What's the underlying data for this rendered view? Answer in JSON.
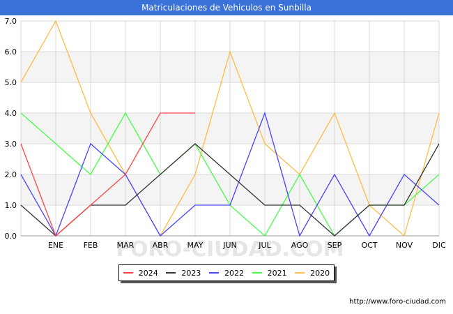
{
  "title": "Matriculaciones de Vehiculos en Sunbilla",
  "footer_url": "http://www.foro-ciudad.com",
  "watermark": "FORO-CIUDAD.COM",
  "chart_data": {
    "type": "line",
    "title": "Matriculaciones de Vehiculos en Sunbilla",
    "xlabel": "",
    "ylabel": "",
    "categories": [
      "",
      "ENE",
      "FEB",
      "MAR",
      "ABR",
      "MAY",
      "JUN",
      "JUL",
      "AGO",
      "SEP",
      "OCT",
      "NOV",
      "DIC"
    ],
    "ylim": [
      0,
      7
    ],
    "yticks": [
      "0.0",
      "1.0",
      "2.0",
      "3.0",
      "4.0",
      "5.0",
      "6.0",
      "7.0"
    ],
    "grid": true,
    "legend_position": "bottom",
    "series": [
      {
        "name": "2024",
        "color": "#ff4444",
        "values": [
          3,
          0,
          1,
          2,
          4,
          4,
          null,
          null,
          null,
          null,
          null,
          null,
          null
        ]
      },
      {
        "name": "2023",
        "color": "#333333",
        "values": [
          1,
          0,
          1,
          1,
          2,
          3,
          2,
          1,
          1,
          0,
          1,
          1,
          3
        ]
      },
      {
        "name": "2022",
        "color": "#4444ff",
        "values": [
          2,
          0,
          3,
          2,
          0,
          1,
          1,
          4,
          0,
          2,
          0,
          2,
          1
        ]
      },
      {
        "name": "2021",
        "color": "#44ff44",
        "values": [
          4,
          3,
          2,
          4,
          2,
          3,
          1,
          0,
          2,
          0,
          1,
          1,
          2
        ]
      },
      {
        "name": "2020",
        "color": "#ffbb44",
        "values": [
          5,
          7,
          4,
          2,
          0,
          2,
          6,
          3,
          2,
          4,
          1,
          0,
          4
        ]
      }
    ]
  }
}
